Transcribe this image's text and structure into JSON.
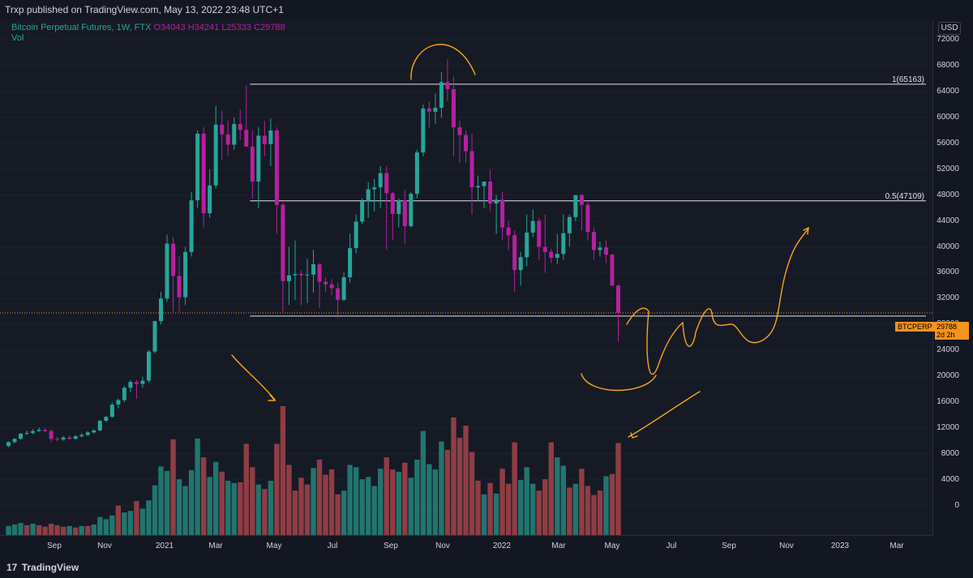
{
  "header": {
    "publisher": "Trxp published on TradingView.com, May 13, 2022 23:48 UTC+1"
  },
  "legend": {
    "symbol": "Bitcoin Perpetual Futures, 1W, FTX",
    "open": "O34043",
    "high": "H34241",
    "low": "L25333",
    "close": "C29788",
    "volume_label": "Vol"
  },
  "axis": {
    "currency": "USD"
  },
  "footer": {
    "brand": "TradingView",
    "logo": "17"
  },
  "colors": {
    "up": "#26a69a",
    "down": "#b6209f",
    "annotation": "#f7a51b",
    "background": "#161a25"
  },
  "price_tag": {
    "symbol": "BTCPERP",
    "price": "29788",
    "countdown": "2d 2h"
  },
  "chart_data": {
    "type": "candlestick",
    "ylim": [
      -3000,
      75000
    ],
    "y_ticks": [
      0,
      4000,
      8000,
      12000,
      16000,
      20000,
      24000,
      28000,
      32000,
      36000,
      40000,
      44000,
      48000,
      52000,
      56000,
      60000,
      64000,
      68000,
      72000
    ],
    "x_ticks": [
      "Sep",
      "Nov",
      "2021",
      "Mar",
      "May",
      "Jul",
      "Sep",
      "Nov",
      "2022",
      "Mar",
      "May",
      "Jul",
      "Sep",
      "Nov",
      "2023",
      "Mar"
    ],
    "levels": [
      {
        "label": "1(65163)",
        "value": 65163
      },
      {
        "label": "0.5(47109)",
        "value": 47109
      },
      {
        "label": "",
        "value": 29300
      }
    ],
    "last_price": 29788,
    "candles_ohlc": [
      [
        9200,
        9900,
        9000,
        9800
      ],
      [
        9800,
        10400,
        9600,
        10300
      ],
      [
        10300,
        11200,
        10200,
        11100
      ],
      [
        11100,
        11600,
        10900,
        11200
      ],
      [
        11200,
        11800,
        11000,
        11500
      ],
      [
        11500,
        12100,
        11400,
        11700
      ],
      [
        11700,
        12000,
        11300,
        11500
      ],
      [
        11500,
        11800,
        9800,
        10300
      ],
      [
        10300,
        10600,
        9900,
        10200
      ],
      [
        10200,
        10700,
        10000,
        10500
      ],
      [
        10500,
        10800,
        10200,
        10300
      ],
      [
        10300,
        10900,
        10200,
        10700
      ],
      [
        10700,
        11200,
        10500,
        10900
      ],
      [
        10900,
        11500,
        10700,
        11300
      ],
      [
        11300,
        11800,
        11100,
        11600
      ],
      [
        11600,
        13200,
        11500,
        13100
      ],
      [
        13100,
        13900,
        12900,
        13700
      ],
      [
        13700,
        15900,
        13600,
        15600
      ],
      [
        15600,
        16500,
        15000,
        16300
      ],
      [
        16300,
        18500,
        16000,
        18200
      ],
      [
        18200,
        19400,
        17500,
        19100
      ],
      [
        19100,
        19400,
        16500,
        18800
      ],
      [
        18800,
        19900,
        18200,
        19300
      ],
      [
        19300,
        24000,
        19000,
        23800
      ],
      [
        23800,
        28600,
        23500,
        28500
      ],
      [
        28500,
        33000,
        28000,
        32000
      ],
      [
        32000,
        41900,
        31500,
        40500
      ],
      [
        40500,
        41500,
        30000,
        35500
      ],
      [
        35500,
        38500,
        30000,
        32200
      ],
      [
        32200,
        40000,
        31000,
        39200
      ],
      [
        39200,
        48500,
        38500,
        47200
      ],
      [
        47200,
        58000,
        46000,
        57500
      ],
      [
        57500,
        58500,
        43000,
        45200
      ],
      [
        45200,
        52000,
        44500,
        49500
      ],
      [
        49500,
        61800,
        49000,
        58900
      ],
      [
        58900,
        61000,
        53500,
        57400
      ],
      [
        57400,
        59500,
        54000,
        55800
      ],
      [
        55800,
        60000,
        55000,
        59000
      ],
      [
        59000,
        61200,
        56500,
        58100
      ],
      [
        58100,
        64900,
        56000,
        55500
      ],
      [
        55500,
        58000,
        47500,
        50100
      ],
      [
        50100,
        58500,
        46000,
        57200
      ],
      [
        57200,
        59500,
        54000,
        55900
      ],
      [
        55900,
        59800,
        52500,
        58000
      ],
      [
        58000,
        58500,
        42000,
        46500
      ],
      [
        46500,
        46800,
        30000,
        34700
      ],
      [
        34700,
        40000,
        31000,
        35600
      ],
      [
        35600,
        41000,
        31800,
        35800
      ],
      [
        35800,
        36400,
        31000,
        35600
      ],
      [
        35600,
        38200,
        31300,
        35700
      ],
      [
        35700,
        39500,
        32900,
        37300
      ],
      [
        37300,
        37500,
        30500,
        34600
      ],
      [
        34600,
        35300,
        33000,
        34200
      ],
      [
        34200,
        35000,
        32500,
        33600
      ],
      [
        33600,
        34500,
        29000,
        31800
      ],
      [
        31800,
        36000,
        31600,
        35300
      ],
      [
        35300,
        42000,
        34500,
        39800
      ],
      [
        39800,
        45000,
        39000,
        43900
      ],
      [
        43900,
        47500,
        43500,
        47000
      ],
      [
        47000,
        50000,
        44500,
        48900
      ],
      [
        48900,
        50500,
        45500,
        49200
      ],
      [
        49200,
        52500,
        46000,
        51400
      ],
      [
        51400,
        52500,
        39600,
        48300
      ],
      [
        48300,
        48500,
        41000,
        45100
      ],
      [
        45100,
        47500,
        43000,
        47200
      ],
      [
        47200,
        48800,
        40500,
        43200
      ],
      [
        43200,
        48500,
        43000,
        48200
      ],
      [
        48200,
        55000,
        47500,
        54600
      ],
      [
        54600,
        62000,
        54000,
        61400
      ],
      [
        61400,
        62500,
        58500,
        60900
      ],
      [
        60900,
        63700,
        59000,
        61500
      ],
      [
        61500,
        67000,
        60000,
        65500
      ],
      [
        65500,
        69000,
        62500,
        64400
      ],
      [
        64400,
        66300,
        54000,
        58500
      ],
      [
        58500,
        59500,
        53000,
        57300
      ],
      [
        57300,
        58000,
        53000,
        54800
      ],
      [
        54800,
        57500,
        45000,
        49200
      ],
      [
        49200,
        51000,
        47000,
        49400
      ],
      [
        49400,
        50000,
        46000,
        50100
      ],
      [
        50100,
        52000,
        45500,
        46700
      ],
      [
        46700,
        48000,
        42000,
        47300
      ],
      [
        47300,
        48500,
        41000,
        43000
      ],
      [
        43000,
        44000,
        39500,
        41800
      ],
      [
        41800,
        42500,
        33000,
        36400
      ],
      [
        36400,
        39200,
        34000,
        38400
      ],
      [
        38400,
        45000,
        37000,
        42200
      ],
      [
        42200,
        45800,
        41500,
        44000
      ],
      [
        44000,
        44500,
        38000,
        40000
      ],
      [
        40000,
        45000,
        36000,
        39200
      ],
      [
        39200,
        39700,
        37500,
        38300
      ],
      [
        38300,
        42000,
        37300,
        38900
      ],
      [
        38900,
        45000,
        38000,
        42100
      ],
      [
        42100,
        45000,
        40000,
        44600
      ],
      [
        44600,
        48000,
        44000,
        48000
      ],
      [
        48000,
        48200,
        42500,
        46500
      ],
      [
        46500,
        46900,
        41000,
        42300
      ],
      [
        42300,
        43000,
        38000,
        39500
      ],
      [
        39500,
        40800,
        38500,
        39900
      ],
      [
        39900,
        41000,
        37500,
        38800
      ],
      [
        38800,
        38900,
        33900,
        34000
      ],
      [
        34000,
        34200,
        25300,
        29800
      ]
    ],
    "volumes": [
      [
        1200,
        "up"
      ],
      [
        1400,
        "up"
      ],
      [
        1600,
        "up"
      ],
      [
        1300,
        "down"
      ],
      [
        1500,
        "up"
      ],
      [
        1300,
        "down"
      ],
      [
        1100,
        "down"
      ],
      [
        1500,
        "down"
      ],
      [
        1300,
        "down"
      ],
      [
        1100,
        "down"
      ],
      [
        1200,
        "up"
      ],
      [
        1000,
        "down"
      ],
      [
        1200,
        "up"
      ],
      [
        1200,
        "down"
      ],
      [
        1400,
        "up"
      ],
      [
        2400,
        "up"
      ],
      [
        2100,
        "up"
      ],
      [
        2600,
        "up"
      ],
      [
        3900,
        "down"
      ],
      [
        3000,
        "up"
      ],
      [
        3200,
        "up"
      ],
      [
        4500,
        "down"
      ],
      [
        3500,
        "up"
      ],
      [
        4600,
        "up"
      ],
      [
        6600,
        "up"
      ],
      [
        9100,
        "up"
      ],
      [
        8500,
        "up"
      ],
      [
        12700,
        "down"
      ],
      [
        7400,
        "up"
      ],
      [
        6500,
        "up"
      ],
      [
        8600,
        "up"
      ],
      [
        12800,
        "up"
      ],
      [
        10300,
        "down"
      ],
      [
        7700,
        "up"
      ],
      [
        9700,
        "up"
      ],
      [
        8400,
        "down"
      ],
      [
        7200,
        "up"
      ],
      [
        6900,
        "up"
      ],
      [
        7000,
        "down"
      ],
      [
        12100,
        "down"
      ],
      [
        9000,
        "down"
      ],
      [
        6700,
        "up"
      ],
      [
        6100,
        "down"
      ],
      [
        7200,
        "up"
      ],
      [
        12100,
        "down"
      ],
      [
        17100,
        "down"
      ],
      [
        9300,
        "down"
      ],
      [
        5900,
        "down"
      ],
      [
        7600,
        "down"
      ],
      [
        6700,
        "down"
      ],
      [
        8900,
        "up"
      ],
      [
        10000,
        "down"
      ],
      [
        8000,
        "down"
      ],
      [
        8700,
        "down"
      ],
      [
        5400,
        "down"
      ],
      [
        5900,
        "up"
      ],
      [
        9300,
        "up"
      ],
      [
        9000,
        "up"
      ],
      [
        7400,
        "up"
      ],
      [
        7700,
        "up"
      ],
      [
        6500,
        "up"
      ],
      [
        8800,
        "up"
      ],
      [
        10300,
        "down"
      ],
      [
        8700,
        "down"
      ],
      [
        8400,
        "up"
      ],
      [
        9600,
        "down"
      ],
      [
        7600,
        "up"
      ],
      [
        10000,
        "up"
      ],
      [
        13800,
        "up"
      ],
      [
        9400,
        "up"
      ],
      [
        8700,
        "up"
      ],
      [
        12400,
        "up"
      ],
      [
        11300,
        "down"
      ],
      [
        15600,
        "down"
      ],
      [
        12900,
        "down"
      ],
      [
        14500,
        "down"
      ],
      [
        11000,
        "down"
      ],
      [
        7200,
        "down"
      ],
      [
        5400,
        "up"
      ],
      [
        6900,
        "down"
      ],
      [
        5500,
        "up"
      ],
      [
        8800,
        "down"
      ],
      [
        6800,
        "down"
      ],
      [
        12300,
        "down"
      ],
      [
        7300,
        "up"
      ],
      [
        9000,
        "up"
      ],
      [
        6800,
        "up"
      ],
      [
        5900,
        "down"
      ],
      [
        7400,
        "down"
      ],
      [
        12300,
        "down"
      ],
      [
        10300,
        "up"
      ],
      [
        9200,
        "up"
      ],
      [
        6300,
        "down"
      ],
      [
        6800,
        "up"
      ],
      [
        8800,
        "down"
      ],
      [
        6500,
        "down"
      ],
      [
        5300,
        "down"
      ],
      [
        5900,
        "down"
      ],
      [
        7800,
        "up"
      ],
      [
        8100,
        "down"
      ],
      [
        12200,
        "down"
      ]
    ]
  }
}
